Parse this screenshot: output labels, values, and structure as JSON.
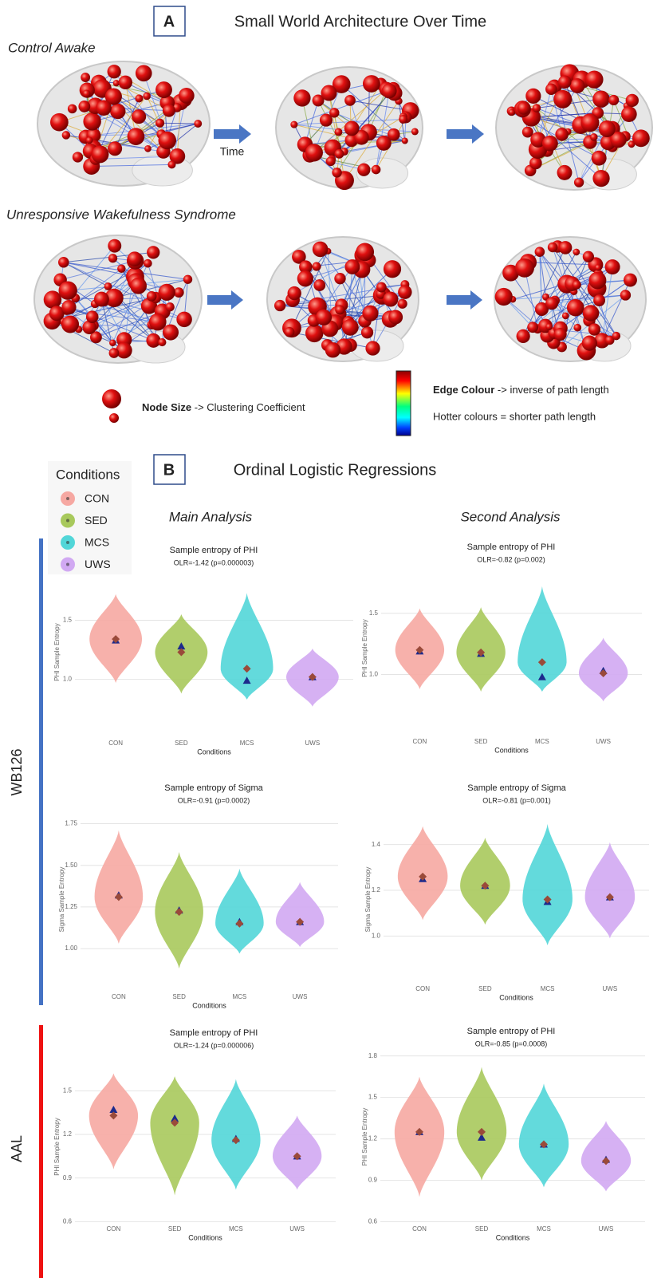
{
  "panel_a": {
    "label": "A",
    "title": "Small World Architecture Over Time",
    "row_labels": [
      "Control Awake",
      "Unresponsive Wakefulness Syndrome"
    ],
    "arrow_label": "Time",
    "node_size_label": "Node Size",
    "node_size_text": "-> Clustering Coefficient",
    "edge_colour_label": "Edge Colour",
    "edge_colour_text": "-> inverse of path length",
    "hotter_text": "Hotter colours = shorter path length"
  },
  "panel_b": {
    "label": "B",
    "title": "Ordinal Logistic Regressions",
    "legend_title": "Conditions",
    "column_titles": [
      "Main Analysis",
      "Second Analysis"
    ],
    "row_groups": [
      "WB126",
      "AAL"
    ]
  },
  "chart_data": [
    {
      "type": "violin",
      "title": "Sample entropy of PHI",
      "subtitle": "OLR=-1.42 (p=0.000003)",
      "x_label": "Conditions",
      "y_label": "PHI Sample Entropy",
      "categories": [
        "CON",
        "SED",
        "MCS",
        "UWS"
      ],
      "colors": [
        "#f6a8a2",
        "#a8c95c",
        "#52d6d8",
        "#d1a9f2"
      ],
      "values": [
        1.34,
        1.23,
        1.09,
        1.02
      ],
      "triangle_values": [
        1.33,
        1.28,
        0.99,
        1.02
      ],
      "violin_min": [
        0.97,
        0.88,
        0.83,
        0.77
      ],
      "violin_max": [
        1.72,
        1.55,
        1.73,
        1.26
      ],
      "ylim": [
        0.64,
        1.82
      ],
      "yticks": [
        {
          "value": 1.0,
          "label": "1.0"
        },
        1.5
      ],
      "grid": true
    },
    {
      "type": "violin",
      "title": "Sample entropy of PHI",
      "subtitle": "OLR=-0.82 (p=0.002)",
      "x_label": "Conditions",
      "y_label": "PHI Sample Entropy",
      "categories": [
        "CON",
        "SED",
        "MCS",
        "UWS"
      ],
      "colors": [
        "#f6a8a2",
        "#a8c95c",
        "#52d6d8",
        "#d1a9f2"
      ],
      "values": [
        1.2,
        1.18,
        1.1,
        1.01
      ],
      "triangle_values": [
        1.19,
        1.17,
        0.98,
        1.03
      ],
      "violin_min": [
        0.88,
        0.86,
        0.86,
        0.78
      ],
      "violin_max": [
        1.54,
        1.55,
        1.72,
        1.3
      ],
      "ylim": [
        0.71,
        1.72
      ],
      "yticks": [
        {
          "value": 1.0,
          "label": "1.0"
        },
        1.5
      ],
      "grid": true
    },
    {
      "type": "violin",
      "title": "Sample entropy of Sigma",
      "subtitle": "OLR=-0.91 (p=0.0002)",
      "x_label": "Conditions",
      "y_label": "Sigma Sample Entropy",
      "categories": [
        "CON",
        "SED",
        "MCS",
        "UWS"
      ],
      "colors": [
        "#f6a8a2",
        "#a8c95c",
        "#52d6d8",
        "#d1a9f2"
      ],
      "values": [
        1.31,
        1.22,
        1.15,
        1.16
      ],
      "triangle_values": [
        1.32,
        1.23,
        1.16,
        1.16
      ],
      "violin_min": [
        1.03,
        0.88,
        0.97,
        1.01
      ],
      "violin_max": [
        1.71,
        1.58,
        1.48,
        1.4
      ],
      "ylim": [
        0.78,
        1.81
      ],
      "yticks": [
        {
          "value": 1.0,
          "label": "1.00"
        },
        1.25,
        {
          "value": 1.5,
          "label": "1.50"
        },
        1.75
      ],
      "grid": true
    },
    {
      "type": "violin",
      "title": "Sample entropy of Sigma",
      "subtitle": "OLR=-0.81 (p=0.001)",
      "x_label": "Conditions",
      "y_label": "Sigma Sample Entropy",
      "categories": [
        "CON",
        "SED",
        "MCS",
        "UWS"
      ],
      "colors": [
        "#f6a8a2",
        "#a8c95c",
        "#52d6d8",
        "#d1a9f2"
      ],
      "values": [
        1.26,
        1.22,
        1.16,
        1.17
      ],
      "triangle_values": [
        1.25,
        1.22,
        1.15,
        1.17
      ],
      "violin_min": [
        1.07,
        1.05,
        0.96,
        0.99
      ],
      "violin_max": [
        1.48,
        1.43,
        1.49,
        1.41
      ],
      "ylim": [
        0.82,
        1.5
      ],
      "yticks": [
        {
          "value": 1.0,
          "label": "1.0"
        },
        1.2,
        1.4
      ],
      "grid": true
    },
    {
      "type": "violin",
      "title": "Sample entropy of PHI",
      "subtitle": "OLR=-1.24 (p=0.000006)",
      "x_label": "Conditions",
      "y_label": "PHI Sample Entropy",
      "categories": [
        "CON",
        "SED",
        "MCS",
        "UWS"
      ],
      "colors": [
        "#f6a8a2",
        "#a8c95c",
        "#52d6d8",
        "#d1a9f2"
      ],
      "values": [
        1.33,
        1.28,
        1.16,
        1.05
      ],
      "triangle_values": [
        1.37,
        1.31,
        1.17,
        1.05
      ],
      "violin_min": [
        0.96,
        0.78,
        0.82,
        0.82
      ],
      "violin_max": [
        1.62,
        1.6,
        1.58,
        1.33
      ],
      "ylim": [
        0.58,
        1.65
      ],
      "yticks": [
        0.6,
        0.9,
        1.2,
        1.5
      ],
      "grid": true
    },
    {
      "type": "violin",
      "title": "Sample entropy of PHI",
      "subtitle": "OLR=-0.85 (p=0.0008)",
      "x_label": "Conditions",
      "y_label": "PHI Sample Entropy",
      "categories": [
        "CON",
        "SED",
        "MCS",
        "UWS"
      ],
      "colors": [
        "#f6a8a2",
        "#a8c95c",
        "#52d6d8",
        "#d1a9f2"
      ],
      "values": [
        1.25,
        1.25,
        1.16,
        1.04
      ],
      "triangle_values": [
        1.25,
        1.21,
        1.16,
        1.05
      ],
      "violin_min": [
        0.78,
        0.9,
        0.85,
        0.82
      ],
      "violin_max": [
        1.65,
        1.72,
        1.6,
        1.33
      ],
      "ylim": [
        0.58,
        1.85
      ],
      "yticks": [
        0.6,
        0.9,
        1.2,
        1.5,
        1.8
      ],
      "grid": true
    }
  ]
}
